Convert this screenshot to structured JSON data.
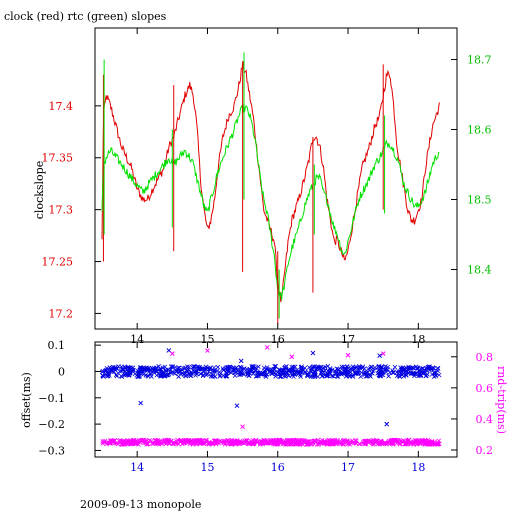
{
  "title": "clock (red) rtc (green) slopes",
  "footer": "2009-09-13 monopole",
  "colors": {
    "red": "#e00000",
    "green": "#00e000",
    "blue": "#0000e0",
    "magenta": "#ff00ff",
    "axis_left": "#e00000",
    "axis_right": "#00c000",
    "axis_blue": "#0000e0",
    "axis_mag": "#ff00ff"
  },
  "chart_data": [
    {
      "type": "line",
      "title": "clock (red) rtc (green) slopes",
      "xlabel": "",
      "ylabel": "clockslope",
      "xlim": [
        13.4,
        18.55
      ],
      "ylim": [
        17.185,
        17.475
      ],
      "y2lim": [
        18.315,
        18.745
      ],
      "xticks": [
        14,
        15,
        16,
        17,
        18
      ],
      "yticks": [
        17.2,
        17.25,
        17.3,
        17.35,
        17.4
      ],
      "y2ticks": [
        18.4,
        18.5,
        18.6,
        18.7
      ],
      "tick_labels": {
        "x": [
          "14",
          "15",
          "16",
          "17",
          "18"
        ],
        "y": [
          "17.2",
          "17.25",
          "17.3",
          "17.35",
          "17.4"
        ],
        "y2": [
          "18.4",
          "18.5",
          "18.6",
          "18.7"
        ]
      },
      "series": [
        {
          "axis": "left",
          "color": "red",
          "x": [
            13.5,
            13.52,
            13.56,
            13.62,
            13.7,
            13.78,
            13.85,
            13.92,
            14.0,
            14.08,
            14.15,
            14.22,
            14.3,
            14.38,
            14.45,
            14.52,
            14.6,
            14.68,
            14.75,
            14.8,
            14.85,
            14.9,
            14.95,
            15.0,
            15.05,
            15.1,
            15.15,
            15.22,
            15.3,
            15.38,
            15.45,
            15.5,
            15.55,
            15.6,
            15.65,
            15.7,
            15.75,
            15.8,
            15.85,
            15.9,
            15.95,
            16.0,
            16.05,
            16.1,
            16.15,
            16.2,
            16.3,
            16.38,
            16.45,
            16.5,
            16.55,
            16.6,
            16.65,
            16.7,
            16.75,
            16.8,
            16.85,
            16.9,
            16.95,
            17.0,
            17.05,
            17.1,
            17.15,
            17.2,
            17.3,
            17.38,
            17.45,
            17.5,
            17.55,
            17.6,
            17.65,
            17.7,
            17.75,
            17.8,
            17.85,
            17.9,
            17.95,
            18.0,
            18.05,
            18.1,
            18.15,
            18.2,
            18.25,
            18.3
          ],
          "y": [
            17.27,
            17.39,
            17.41,
            17.4,
            17.38,
            17.36,
            17.35,
            17.34,
            17.32,
            17.31,
            17.31,
            17.32,
            17.33,
            17.34,
            17.36,
            17.37,
            17.39,
            17.41,
            17.42,
            17.41,
            17.38,
            17.33,
            17.3,
            17.28,
            17.29,
            17.31,
            17.34,
            17.37,
            17.39,
            17.4,
            17.42,
            17.44,
            17.43,
            17.41,
            17.39,
            17.36,
            17.33,
            17.3,
            17.29,
            17.28,
            17.27,
            17.23,
            17.21,
            17.24,
            17.27,
            17.29,
            17.31,
            17.33,
            17.35,
            17.37,
            17.37,
            17.36,
            17.34,
            17.31,
            17.29,
            17.27,
            17.27,
            17.26,
            17.25,
            17.26,
            17.28,
            17.3,
            17.32,
            17.34,
            17.36,
            17.38,
            17.39,
            17.41,
            17.43,
            17.43,
            17.4,
            17.36,
            17.34,
            17.32,
            17.3,
            17.29,
            17.29,
            17.3,
            17.31,
            17.34,
            17.36,
            17.38,
            17.39,
            17.4
          ]
        },
        {
          "axis": "right",
          "color": "green",
          "x": [
            13.5,
            13.52,
            13.56,
            13.62,
            13.7,
            13.78,
            13.85,
            13.92,
            14.0,
            14.08,
            14.15,
            14.22,
            14.3,
            14.38,
            14.45,
            14.52,
            14.6,
            14.68,
            14.75,
            14.8,
            14.85,
            14.9,
            14.95,
            15.0,
            15.05,
            15.1,
            15.15,
            15.22,
            15.3,
            15.38,
            15.45,
            15.5,
            15.55,
            15.6,
            15.65,
            15.7,
            15.75,
            15.8,
            15.85,
            15.9,
            15.95,
            16.0,
            16.05,
            16.1,
            16.15,
            16.2,
            16.3,
            16.38,
            16.45,
            16.5,
            16.55,
            16.6,
            16.65,
            16.7,
            16.75,
            16.8,
            16.85,
            16.9,
            16.95,
            17.0,
            17.05,
            17.1,
            17.15,
            17.2,
            17.3,
            17.38,
            17.45,
            17.5,
            17.55,
            17.6,
            17.65,
            17.7,
            17.75,
            17.8,
            17.85,
            17.9,
            17.95,
            18.0,
            18.05,
            18.1,
            18.15,
            18.2,
            18.25,
            18.3
          ],
          "y": [
            18.48,
            18.55,
            18.56,
            18.57,
            18.56,
            18.55,
            18.54,
            18.53,
            18.52,
            18.51,
            18.52,
            18.53,
            18.54,
            18.55,
            18.56,
            18.55,
            18.56,
            18.57,
            18.56,
            18.55,
            18.53,
            18.51,
            18.49,
            18.48,
            18.5,
            18.52,
            18.54,
            18.56,
            18.58,
            18.6,
            18.62,
            18.63,
            18.63,
            18.62,
            18.6,
            18.57,
            18.53,
            18.5,
            18.48,
            18.45,
            18.42,
            18.37,
            18.36,
            18.38,
            18.41,
            18.43,
            18.46,
            18.49,
            18.51,
            18.52,
            18.53,
            18.53,
            18.51,
            18.5,
            18.48,
            18.46,
            18.45,
            18.43,
            18.42,
            18.44,
            18.46,
            18.48,
            18.5,
            18.51,
            18.53,
            18.55,
            18.56,
            18.57,
            18.58,
            18.58,
            18.57,
            18.56,
            18.54,
            18.52,
            18.51,
            18.5,
            18.49,
            18.49,
            18.5,
            18.51,
            18.53,
            18.55,
            18.56,
            18.57
          ]
        }
      ]
    },
    {
      "type": "scatter",
      "ylabel": "offset(ms)",
      "y2label": "rnd-trip(ms)",
      "xlim": [
        13.4,
        18.55
      ],
      "ylim": [
        -0.325,
        0.112
      ],
      "y2lim": [
        0.155,
        0.895
      ],
      "xticks": [
        14,
        15,
        16,
        17,
        18
      ],
      "yticks": [
        0.1,
        0,
        -0.1,
        -0.2,
        -0.3
      ],
      "y2ticks": [
        0.2,
        0.4,
        0.6,
        0.8
      ],
      "tick_labels": {
        "x": [
          "14",
          "15",
          "16",
          "17",
          "18"
        ],
        "y": [
          "0.1",
          "0",
          "−0.1",
          "−0.2",
          "−0.3"
        ],
        "y2": [
          "0.2",
          "0.4",
          "0.6",
          "0.8"
        ]
      },
      "series": [
        {
          "axis": "left",
          "color": "blue",
          "marker": "x",
          "band": {
            "x": [
              13.5,
              18.3
            ],
            "center": 0.0,
            "halfwidth": 0.02
          },
          "outliers": {
            "x": [
              14.05,
              14.45,
              15.42,
              15.48,
              16.5,
              17.45,
              17.55
            ],
            "y": [
              -0.12,
              0.08,
              -0.13,
              0.04,
              0.07,
              0.06,
              -0.2
            ]
          }
        },
        {
          "axis": "right",
          "color": "magenta",
          "marker": "x",
          "band": {
            "x": [
              13.5,
              18.3
            ],
            "center": 0.25,
            "halfwidth": 0.015
          },
          "outliers": {
            "x": [
              14.5,
              15.0,
              15.5,
              15.85,
              16.2,
              17.0,
              17.5
            ],
            "y": [
              0.82,
              0.84,
              0.35,
              0.86,
              0.8,
              0.81,
              0.82
            ]
          }
        }
      ]
    }
  ]
}
